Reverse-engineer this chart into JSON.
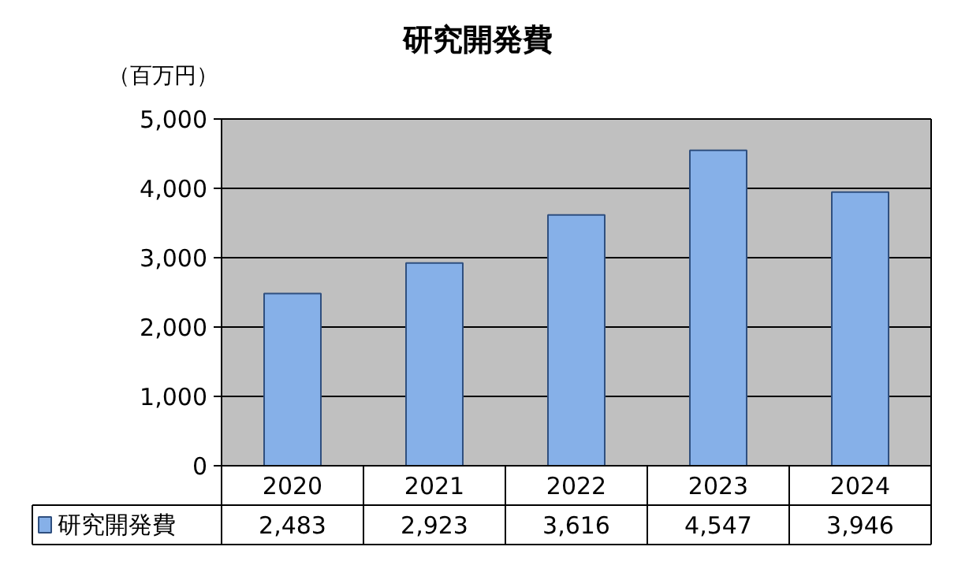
{
  "chart_data": {
    "type": "bar",
    "title": "研究開発費",
    "ylabel": "（百万円）",
    "categories": [
      "2020",
      "2021",
      "2022",
      "2023",
      "2024"
    ],
    "series": [
      {
        "name": "研究開発費",
        "color": "#86b0e8",
        "values": [
          2483,
          2923,
          3616,
          4547,
          3946
        ],
        "value_labels": [
          "2,483",
          "2,923",
          "3,616",
          "4,547",
          "3,946"
        ]
      }
    ],
    "ylim": [
      0,
      5000
    ],
    "yticks": [
      0,
      {
        "value": 1000,
        "label": "1,000"
      },
      {
        "value": 2000,
        "label": "2,000"
      },
      {
        "value": 3000,
        "label": "3,000"
      },
      {
        "value": 4000,
        "label": "4,000"
      },
      {
        "value": 5000,
        "label": "5,000"
      }
    ],
    "grid": "y",
    "legend": "bottom"
  }
}
